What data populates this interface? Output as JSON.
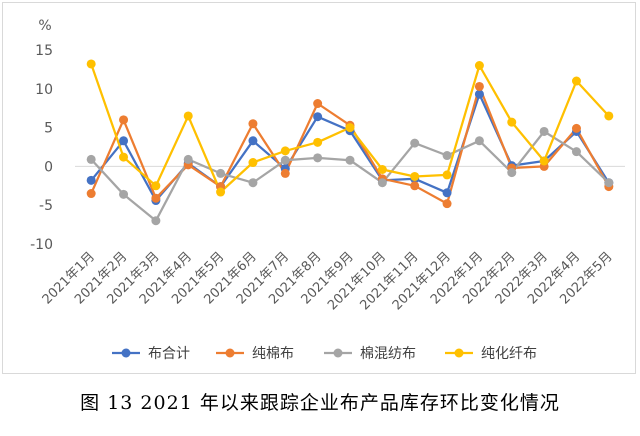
{
  "caption": "图 13   2021 年以来跟踪企业布产品库存环比变化情况",
  "chart_data": {
    "type": "line",
    "ylabel": "%",
    "ylim": [
      -10,
      15
    ],
    "yticks": [
      -10,
      -5,
      0,
      5,
      10,
      15
    ],
    "grid": false,
    "legend_position": "bottom",
    "categories": [
      "2021年1月",
      "2021年2月",
      "2021年3月",
      "2021年4月",
      "2021年5月",
      "2021年6月",
      "2021年7月",
      "2021年8月",
      "2021年9月",
      "2021年10月",
      "2021年11月",
      "2021年12月",
      "2022年1月",
      "2022年2月",
      "2022年3月",
      "2022年4月",
      "2022年5月"
    ],
    "series": [
      {
        "name": "布合计",
        "color": "#4472c4",
        "values": [
          -1.8,
          3.3,
          -4.4,
          0.4,
          -2.6,
          3.3,
          -0.3,
          6.4,
          4.6,
          -1.8,
          -1.6,
          -3.4,
          9.3,
          0.1,
          0.7,
          4.5,
          -2.1
        ]
      },
      {
        "name": "纯棉布",
        "color": "#ed7d31",
        "values": [
          -3.5,
          6.0,
          -4.1,
          0.2,
          -2.6,
          5.5,
          -0.9,
          8.1,
          5.3,
          -1.6,
          -2.5,
          -4.8,
          10.3,
          -0.2,
          0.0,
          4.9,
          -2.6
        ]
      },
      {
        "name": "棉混纺布",
        "color": "#a5a5a5",
        "values": [
          0.9,
          -3.6,
          -7.0,
          0.9,
          -0.9,
          -2.1,
          0.8,
          1.1,
          0.8,
          -2.1,
          3.0,
          1.4,
          3.3,
          -0.8,
          4.5,
          1.9,
          -2.1
        ]
      },
      {
        "name": "纯化纤布",
        "color": "#ffc000",
        "values": [
          13.2,
          1.2,
          -2.5,
          6.5,
          -3.3,
          0.5,
          2.0,
          3.1,
          5.0,
          -0.4,
          -1.3,
          -1.1,
          13.0,
          5.7,
          0.7,
          11.0,
          6.5
        ]
      }
    ]
  }
}
